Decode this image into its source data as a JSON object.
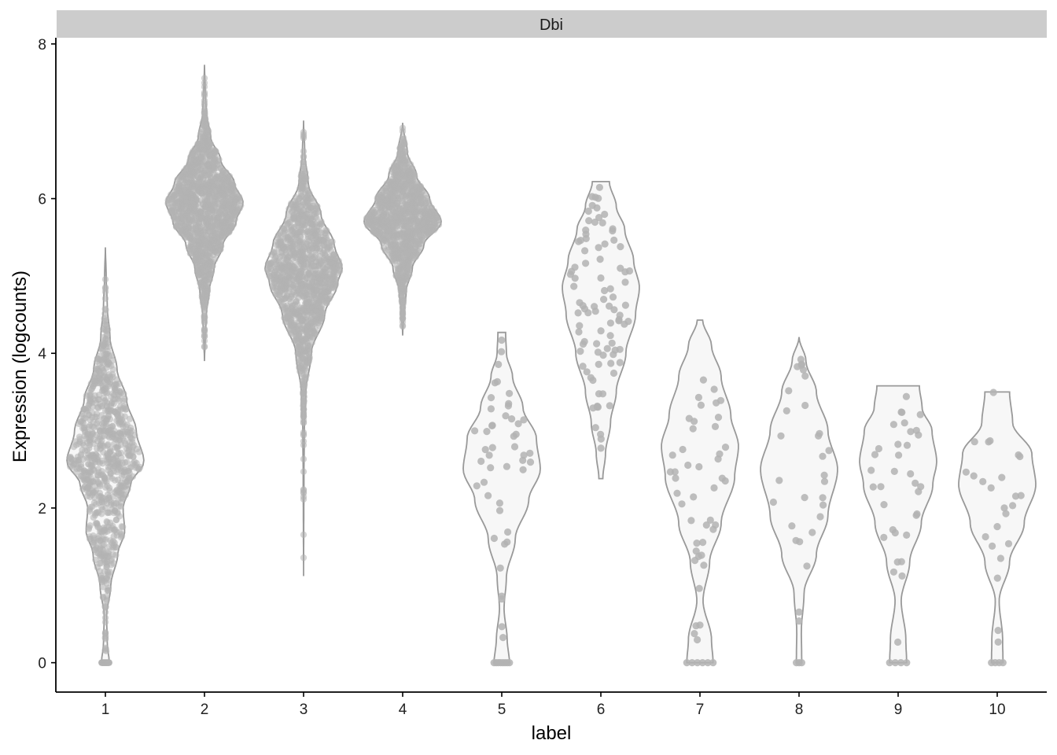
{
  "chart_data": {
    "type": "violin",
    "facet_label": "Dbi",
    "xlabel": "label",
    "ylabel": "Expression (logcounts)",
    "ylim": [
      -0.38,
      8.08
    ],
    "yticks": [
      0,
      2,
      4,
      6,
      8
    ],
    "categories": [
      "1",
      "2",
      "3",
      "4",
      "5",
      "6",
      "7",
      "8",
      "9",
      "10"
    ],
    "colors": {
      "point": "#b3b3b3",
      "violin_outline": "#999999",
      "violin_fill": "#f7f7f7",
      "strip": "#cccccc",
      "axis": "#000000"
    },
    "groups": [
      {
        "label": "1",
        "n_points": 900,
        "min": 0,
        "max": 5.37,
        "zero_count": 40,
        "profile": [
          [
            0,
            0.1
          ],
          [
            0.25,
            0.05
          ],
          [
            0.6,
            0.03
          ],
          [
            1.0,
            0.14
          ],
          [
            1.4,
            0.32
          ],
          [
            1.7,
            0.5
          ],
          [
            2.0,
            0.46
          ],
          [
            2.3,
            0.65
          ],
          [
            2.6,
            1.0
          ],
          [
            3.0,
            0.8
          ],
          [
            3.4,
            0.55
          ],
          [
            3.8,
            0.3
          ],
          [
            4.2,
            0.12
          ],
          [
            4.6,
            0.05
          ],
          [
            5.0,
            0.02
          ],
          [
            5.37,
            0.0
          ]
        ]
      },
      {
        "label": "2",
        "n_points": 1300,
        "min": 3.9,
        "max": 7.73,
        "zero_count": 0,
        "profile": [
          [
            3.9,
            0.0
          ],
          [
            4.2,
            0.02
          ],
          [
            4.5,
            0.05
          ],
          [
            4.8,
            0.12
          ],
          [
            5.1,
            0.25
          ],
          [
            5.4,
            0.48
          ],
          [
            5.7,
            0.82
          ],
          [
            5.95,
            1.0
          ],
          [
            6.2,
            0.78
          ],
          [
            6.5,
            0.42
          ],
          [
            6.8,
            0.16
          ],
          [
            7.1,
            0.05
          ],
          [
            7.4,
            0.02
          ],
          [
            7.73,
            0.0
          ]
        ]
      },
      {
        "label": "3",
        "n_points": 1200,
        "min": 1.12,
        "max": 7.01,
        "zero_count": 0,
        "profile": [
          [
            1.12,
            0.0
          ],
          [
            1.8,
            0.005
          ],
          [
            2.4,
            0.01
          ],
          [
            3.0,
            0.02
          ],
          [
            3.5,
            0.06
          ],
          [
            4.0,
            0.2
          ],
          [
            4.5,
            0.55
          ],
          [
            4.9,
            0.88
          ],
          [
            5.1,
            1.0
          ],
          [
            5.4,
            0.8
          ],
          [
            5.8,
            0.45
          ],
          [
            6.2,
            0.12
          ],
          [
            6.6,
            0.03
          ],
          [
            7.01,
            0.0
          ]
        ]
      },
      {
        "label": "4",
        "n_points": 1100,
        "min": 4.23,
        "max": 6.98,
        "zero_count": 0,
        "profile": [
          [
            4.23,
            0.0
          ],
          [
            4.5,
            0.03
          ],
          [
            4.8,
            0.09
          ],
          [
            5.1,
            0.25
          ],
          [
            5.4,
            0.55
          ],
          [
            5.7,
            1.0
          ],
          [
            6.0,
            0.7
          ],
          [
            6.3,
            0.36
          ],
          [
            6.6,
            0.12
          ],
          [
            6.98,
            0.0
          ]
        ]
      },
      {
        "label": "5",
        "n_points": 55,
        "min": 0,
        "max": 4.27,
        "zero_count": 8,
        "profile": [
          [
            0,
            0.2
          ],
          [
            0.3,
            0.14
          ],
          [
            0.7,
            0.06
          ],
          [
            1.1,
            0.12
          ],
          [
            1.6,
            0.35
          ],
          [
            2.1,
            0.7
          ],
          [
            2.5,
            1.0
          ],
          [
            2.9,
            0.9
          ],
          [
            3.3,
            0.55
          ],
          [
            3.7,
            0.28
          ],
          [
            4.0,
            0.12
          ],
          [
            4.27,
            0.1
          ]
        ]
      },
      {
        "label": "6",
        "n_points": 90,
        "min": 2.38,
        "max": 6.22,
        "zero_count": 0,
        "profile": [
          [
            2.38,
            0.05
          ],
          [
            2.7,
            0.12
          ],
          [
            3.1,
            0.25
          ],
          [
            3.5,
            0.4
          ],
          [
            4.0,
            0.65
          ],
          [
            4.5,
            0.9
          ],
          [
            4.85,
            1.0
          ],
          [
            5.2,
            0.85
          ],
          [
            5.6,
            0.62
          ],
          [
            5.9,
            0.4
          ],
          [
            6.22,
            0.22
          ]
        ]
      },
      {
        "label": "7",
        "n_points": 50,
        "min": 0,
        "max": 4.43,
        "zero_count": 6,
        "profile": [
          [
            0,
            0.34
          ],
          [
            0.3,
            0.3
          ],
          [
            0.8,
            0.08
          ],
          [
            1.3,
            0.25
          ],
          [
            1.8,
            0.55
          ],
          [
            2.4,
            0.9
          ],
          [
            2.8,
            1.0
          ],
          [
            3.2,
            0.8
          ],
          [
            3.7,
            0.55
          ],
          [
            4.1,
            0.3
          ],
          [
            4.43,
            0.07
          ]
        ]
      },
      {
        "label": "8",
        "n_points": 32,
        "min": 0,
        "max": 4.21,
        "zero_count": 3,
        "profile": [
          [
            0,
            0.07
          ],
          [
            0.4,
            0.06
          ],
          [
            0.9,
            0.13
          ],
          [
            1.4,
            0.45
          ],
          [
            1.9,
            0.75
          ],
          [
            2.5,
            1.0
          ],
          [
            3.0,
            0.75
          ],
          [
            3.5,
            0.45
          ],
          [
            3.9,
            0.18
          ],
          [
            4.21,
            0.0
          ]
        ]
      },
      {
        "label": "9",
        "n_points": 38,
        "min": 0,
        "max": 3.58,
        "zero_count": 4,
        "profile": [
          [
            0,
            0.22
          ],
          [
            0.3,
            0.2
          ],
          [
            0.8,
            0.08
          ],
          [
            1.3,
            0.3
          ],
          [
            1.8,
            0.6
          ],
          [
            2.3,
            0.9
          ],
          [
            2.6,
            1.0
          ],
          [
            3.0,
            0.88
          ],
          [
            3.3,
            0.62
          ],
          [
            3.58,
            0.55
          ]
        ]
      },
      {
        "label": "10",
        "n_points": 28,
        "min": 0,
        "max": 3.5,
        "zero_count": 4,
        "profile": [
          [
            0,
            0.15
          ],
          [
            0.3,
            0.14
          ],
          [
            0.8,
            0.05
          ],
          [
            1.3,
            0.32
          ],
          [
            1.8,
            0.7
          ],
          [
            2.3,
            1.0
          ],
          [
            2.7,
            0.9
          ],
          [
            3.1,
            0.4
          ],
          [
            3.5,
            0.32
          ]
        ]
      }
    ]
  }
}
